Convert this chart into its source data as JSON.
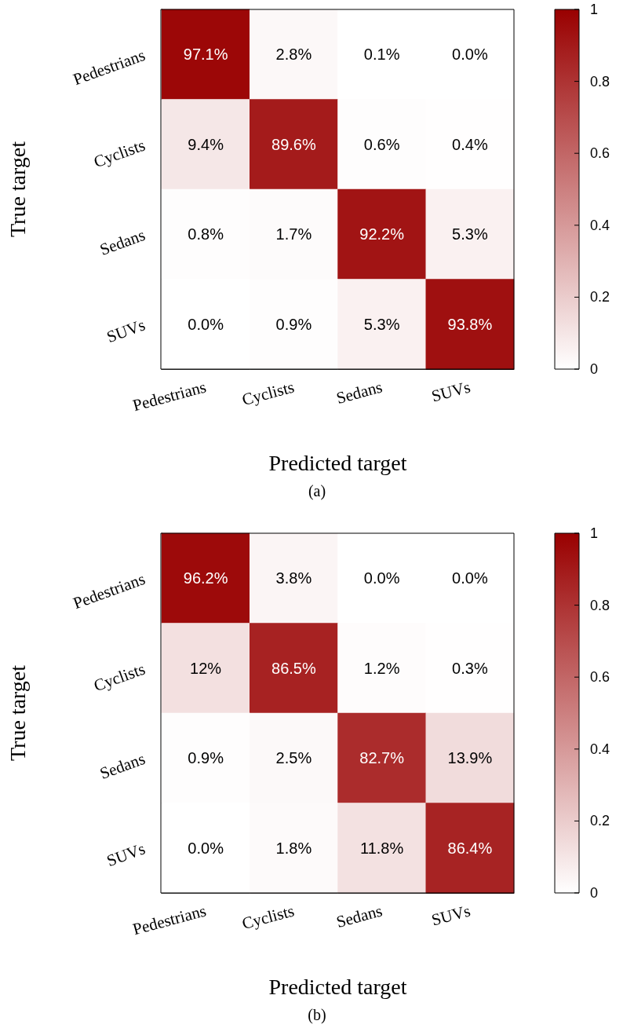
{
  "chart_data": [
    {
      "type": "heatmap",
      "xlabel": "Predicted target",
      "ylabel": "True target",
      "categories": [
        "Pedestrians",
        "Cyclists",
        "Sedans",
        "SUVs"
      ],
      "y_categories": [
        "Pedestrians",
        "Cyclists",
        "Sedans",
        "SUVs"
      ],
      "cells": [
        [
          0.971,
          0.028,
          0.001,
          0.0
        ],
        [
          0.094,
          0.896,
          0.006,
          0.004
        ],
        [
          0.008,
          0.017,
          0.922,
          0.053
        ],
        [
          0.0,
          0.009,
          0.053,
          0.938
        ]
      ],
      "cell_labels": [
        [
          "97.1%",
          "2.8%",
          "0.1%",
          "0.0%"
        ],
        [
          "9.4%",
          "89.6%",
          "0.6%",
          "0.4%"
        ],
        [
          "0.8%",
          "1.7%",
          "92.2%",
          "5.3%"
        ],
        [
          "0.0%",
          "0.9%",
          "5.3%",
          "93.8%"
        ]
      ],
      "clim": [
        0,
        1
      ],
      "cticks": [
        0,
        0.2,
        0.4,
        0.6,
        0.8,
        1
      ],
      "annotations": [
        "(a)"
      ]
    },
    {
      "type": "heatmap",
      "xlabel": "Predicted target",
      "ylabel": "True target",
      "categories": [
        "Pedestrians",
        "Cyclists",
        "Sedans",
        "SUVs"
      ],
      "y_categories": [
        "Pedestrians",
        "Cyclists",
        "Sedans",
        "SUVs"
      ],
      "cells": [
        [
          0.962,
          0.038,
          0.0,
          0.0
        ],
        [
          0.12,
          0.865,
          0.012,
          0.003
        ],
        [
          0.009,
          0.025,
          0.827,
          0.139
        ],
        [
          0.0,
          0.018,
          0.118,
          0.864
        ]
      ],
      "cell_labels": [
        [
          "96.2%",
          "3.8%",
          "0.0%",
          "0.0%"
        ],
        [
          "12%",
          "86.5%",
          "1.2%",
          "0.3%"
        ],
        [
          "0.9%",
          "2.5%",
          "82.7%",
          "13.9%"
        ],
        [
          "0.0%",
          "1.8%",
          "11.8%",
          "86.4%"
        ]
      ],
      "clim": [
        0,
        1
      ],
      "cticks": [
        0,
        0.2,
        0.4,
        0.6,
        0.8,
        1
      ],
      "annotations": [
        "(b)"
      ]
    }
  ]
}
